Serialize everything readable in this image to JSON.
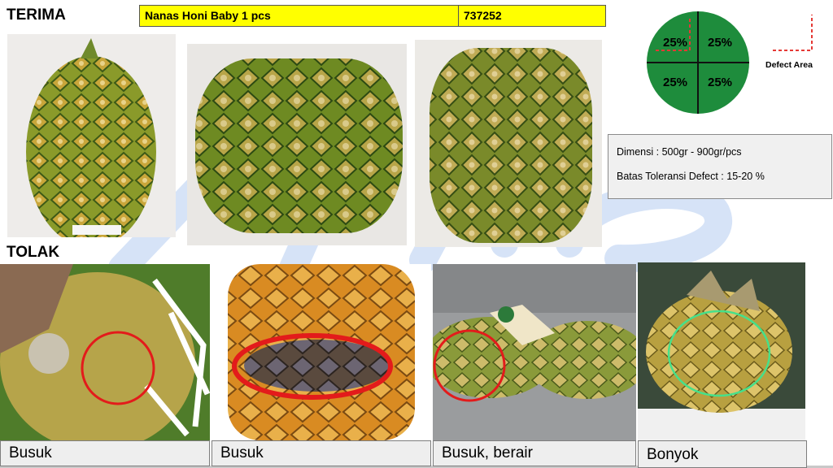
{
  "headings": {
    "accept": "TERIMA",
    "reject": "TOLAK"
  },
  "product": {
    "name": "Nanas Honi Baby 1 pcs",
    "code": "737252"
  },
  "legend": {
    "quadrants": [
      "25%",
      "25%",
      "25%",
      "25%"
    ],
    "defect_label": "Defect Area",
    "circle_color": "#1e8c3c",
    "defect_color": "#e53935"
  },
  "spec": {
    "dimension": "Dimensi : 500gr - 900gr/pcs",
    "tolerance": "Batas Toleransi Defect : 15-20 %"
  },
  "reject_captions": [
    "Busuk",
    "Busuk",
    "Busuk, berair",
    "Bonyok"
  ],
  "colors": {
    "highlight": "#ffff00",
    "marker_red": "#e31b1b",
    "marker_green": "#46e08a"
  }
}
